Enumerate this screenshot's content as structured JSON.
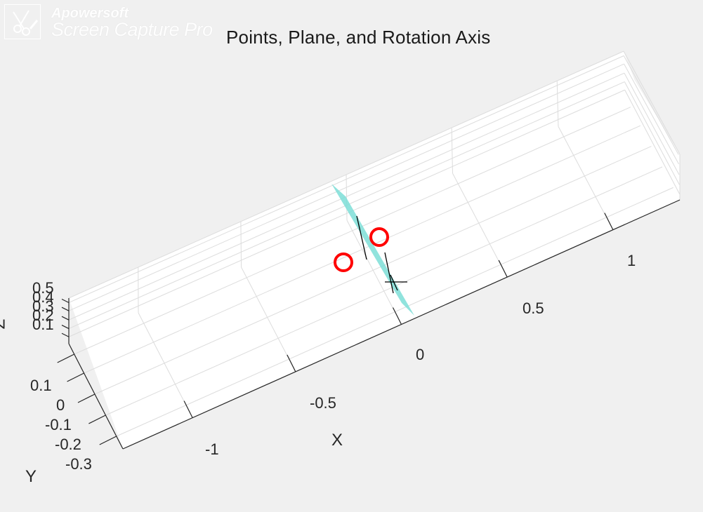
{
  "watermark": {
    "brand": "Apowersoft",
    "product": "Screen Capture Pro",
    "icon": "scissors-pen-icon"
  },
  "chart_data": {
    "type": "scatter",
    "title": "Points, Plane, and Rotation Axis",
    "xlabel": "X",
    "ylabel": "Y",
    "zlabel": "Z",
    "xlim": [
      -1.25,
      1.25
    ],
    "ylim": [
      -0.35,
      0.2
    ],
    "zlim": [
      0,
      0.5
    ],
    "x_ticks": [
      -1,
      -0.5,
      0,
      0.5,
      1
    ],
    "x_tick_labels": [
      "-1",
      "-0.5",
      "0",
      "0.5",
      "1"
    ],
    "y_ticks": [
      -0.3,
      -0.2,
      -0.1,
      0,
      0.1
    ],
    "y_tick_labels": [
      "-0.3",
      "-0.2",
      "-0.1",
      "0",
      "0.1"
    ],
    "z_ticks": [
      0.1,
      0.2,
      0.3,
      0.4,
      0.5
    ],
    "z_tick_labels": [
      "0.1",
      "0.2",
      "0.3",
      "0.4",
      "0.5"
    ],
    "grid": true,
    "series": [
      {
        "kind": "points",
        "marker": "circle",
        "color": "#ff0000",
        "points": [
          {
            "x": -0.18,
            "y": 0.0,
            "z": 0.22
          },
          {
            "x": 0.05,
            "y": 0.0,
            "z": 0.28
          }
        ]
      },
      {
        "kind": "plane",
        "color": "#7dded7",
        "alpha": 0.85,
        "vertices": [
          {
            "x": -0.02,
            "y": 0.18,
            "z": 0.45
          },
          {
            "x": 0.0,
            "y": 0.18,
            "z": 0.45
          },
          {
            "x": 0.02,
            "y": -0.22,
            "z": 0.05
          },
          {
            "x": 0.0,
            "y": -0.22,
            "z": 0.05
          }
        ]
      },
      {
        "kind": "line",
        "color": "#000000",
        "segments": [
          [
            {
              "x": -0.02,
              "y": 0.12,
              "z": 0.38
            },
            {
              "x": 0.0,
              "y": 0.0,
              "z": 0.22
            }
          ],
          [
            {
              "x": 0.04,
              "y": 0.08,
              "z": 0.33
            },
            {
              "x": 0.04,
              "y": -0.08,
              "z": 0.15
            }
          ],
          [
            {
              "x": 0.0,
              "y": -0.12,
              "z": 0.12
            },
            {
              "x": 0.06,
              "y": -0.12,
              "z": 0.12
            }
          ],
          [
            {
              "x": 0.03,
              "y": -0.09,
              "z": 0.14
            },
            {
              "x": 0.03,
              "y": -0.16,
              "z": 0.08
            }
          ]
        ]
      }
    ]
  },
  "colors": {
    "background": "#f0f0f0",
    "axes_face": "#ffffff",
    "grid": "#dcdcdc",
    "axis_line": "#262626",
    "marker": "#ff0000",
    "plane": "#7dded7"
  }
}
